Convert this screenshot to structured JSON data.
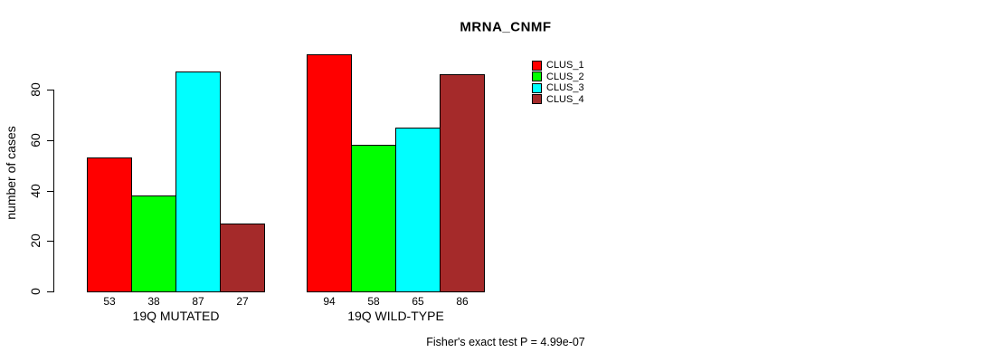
{
  "chart_data": {
    "type": "bar",
    "title": "MRNA_CNMF",
    "ylabel": "number of cases",
    "xlabel": "",
    "ylim": [
      0,
      94
    ],
    "yticks": [
      0,
      20,
      40,
      60,
      80
    ],
    "grid": false,
    "legend_position": "top-right",
    "categories": [
      "19Q MUTATED",
      "19Q WILD-TYPE"
    ],
    "series": [
      {
        "name": "CLUS_1",
        "color": "#ff0000",
        "values": [
          53,
          94
        ]
      },
      {
        "name": "CLUS_2",
        "color": "#00ff00",
        "values": [
          38,
          58
        ]
      },
      {
        "name": "CLUS_3",
        "color": "#00ffff",
        "values": [
          87,
          65
        ]
      },
      {
        "name": "CLUS_4",
        "color": "#a52a2a",
        "values": [
          27,
          86
        ]
      }
    ],
    "bar_value_labels": true,
    "annotation": "Fisher's exact test P = 4.99e-07"
  }
}
